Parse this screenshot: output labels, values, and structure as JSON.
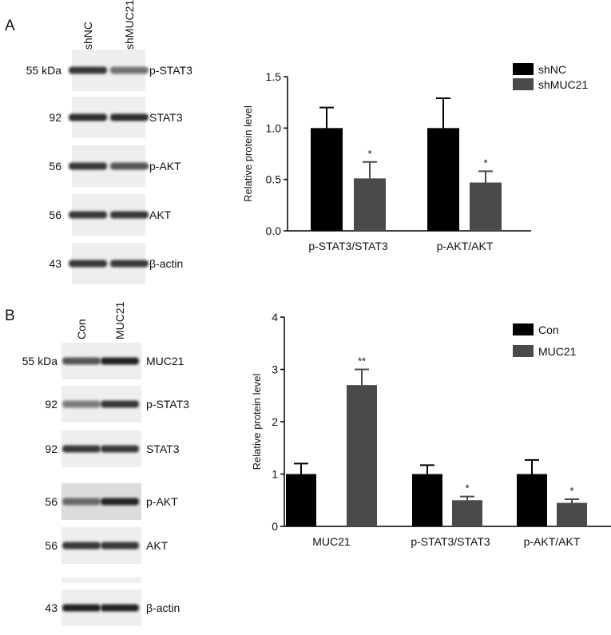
{
  "panels": [
    {
      "letter": "A",
      "blot": {
        "columns": [
          "shNC",
          "shMUC21"
        ],
        "rows": [
          {
            "mw": "55 kDa",
            "protein": "p-STAT3",
            "band_intensity": [
              0.85,
              0.55
            ]
          },
          {
            "mw": "92",
            "protein": "STAT3",
            "band_intensity": [
              0.9,
              0.9
            ]
          },
          {
            "mw": "56",
            "protein": "p-AKT",
            "band_intensity": [
              0.85,
              0.7
            ]
          },
          {
            "mw": "56",
            "protein": "AKT",
            "band_intensity": [
              0.85,
              0.85
            ]
          },
          {
            "mw": "43",
            "protein": "β-actin",
            "band_intensity": [
              0.85,
              0.85
            ]
          }
        ]
      },
      "chart": {
        "ylabel": "Relative protein level",
        "yticks": [
          "0.0",
          "0.5",
          "1.0",
          "1.5"
        ],
        "legend": [
          "shNC",
          "shMUC21"
        ],
        "categories": [
          "p-STAT3/STAT3",
          "p-AKT/AKT"
        ],
        "significance": [
          "*",
          "*"
        ]
      }
    },
    {
      "letter": "B",
      "blot": {
        "columns": [
          "Con",
          "MUC21"
        ],
        "rows": [
          {
            "mw": "55 kDa",
            "protein": "MUC21",
            "band_intensity": [
              0.7,
              0.95
            ]
          },
          {
            "mw": "92",
            "protein": "p-STAT3",
            "band_intensity": [
              0.5,
              0.85
            ]
          },
          {
            "mw": "92",
            "protein": "STAT3",
            "band_intensity": [
              0.85,
              0.85
            ]
          },
          {
            "mw": "56",
            "protein": "p-AKT",
            "band_intensity": [
              0.6,
              0.95
            ]
          },
          {
            "mw": "56",
            "protein": "AKT",
            "band_intensity": [
              0.85,
              0.85
            ]
          },
          {
            "mw": "43",
            "protein": "β-actin",
            "band_intensity": [
              0.95,
              0.95
            ]
          }
        ]
      },
      "chart": {
        "ylabel": "Relative protein level",
        "yticks": [
          "0",
          "1",
          "2",
          "3",
          "4"
        ],
        "legend": [
          "Con",
          "MUC21"
        ],
        "categories": [
          "MUC21",
          "p-STAT3/STAT3",
          "p-AKT/AKT"
        ],
        "significance": [
          "**",
          "*",
          "*"
        ]
      }
    }
  ],
  "chart_data": [
    {
      "type": "bar",
      "categories": [
        "p-STAT3/STAT3",
        "p-AKT/AKT"
      ],
      "series": [
        {
          "name": "shNC",
          "values": [
            1.0,
            1.0
          ],
          "errors": [
            0.2,
            0.29
          ],
          "color": "#000000"
        },
        {
          "name": "shMUC21",
          "values": [
            0.51,
            0.47
          ],
          "errors": [
            0.16,
            0.11
          ],
          "color": "#4a4a4a"
        }
      ],
      "ylabel": "Relative protein level",
      "ylim": [
        0,
        1.5
      ],
      "yticks": [
        0,
        0.5,
        1.0,
        1.5
      ],
      "legend_position": "top-right",
      "grid": false
    },
    {
      "type": "bar",
      "categories": [
        "MUC21",
        "p-STAT3/STAT3",
        "p-AKT/AKT"
      ],
      "series": [
        {
          "name": "Con",
          "values": [
            1.0,
            1.0,
            1.0
          ],
          "errors": [
            0.2,
            0.17,
            0.27
          ],
          "color": "#000000"
        },
        {
          "name": "MUC21",
          "values": [
            2.7,
            0.5,
            0.45
          ],
          "errors": [
            0.3,
            0.07,
            0.07
          ],
          "color": "#4a4a4a"
        }
      ],
      "ylabel": "Relative protein level",
      "ylim": [
        0,
        4
      ],
      "yticks": [
        0,
        1,
        2,
        3,
        4
      ],
      "legend_position": "top-right",
      "grid": false
    }
  ]
}
